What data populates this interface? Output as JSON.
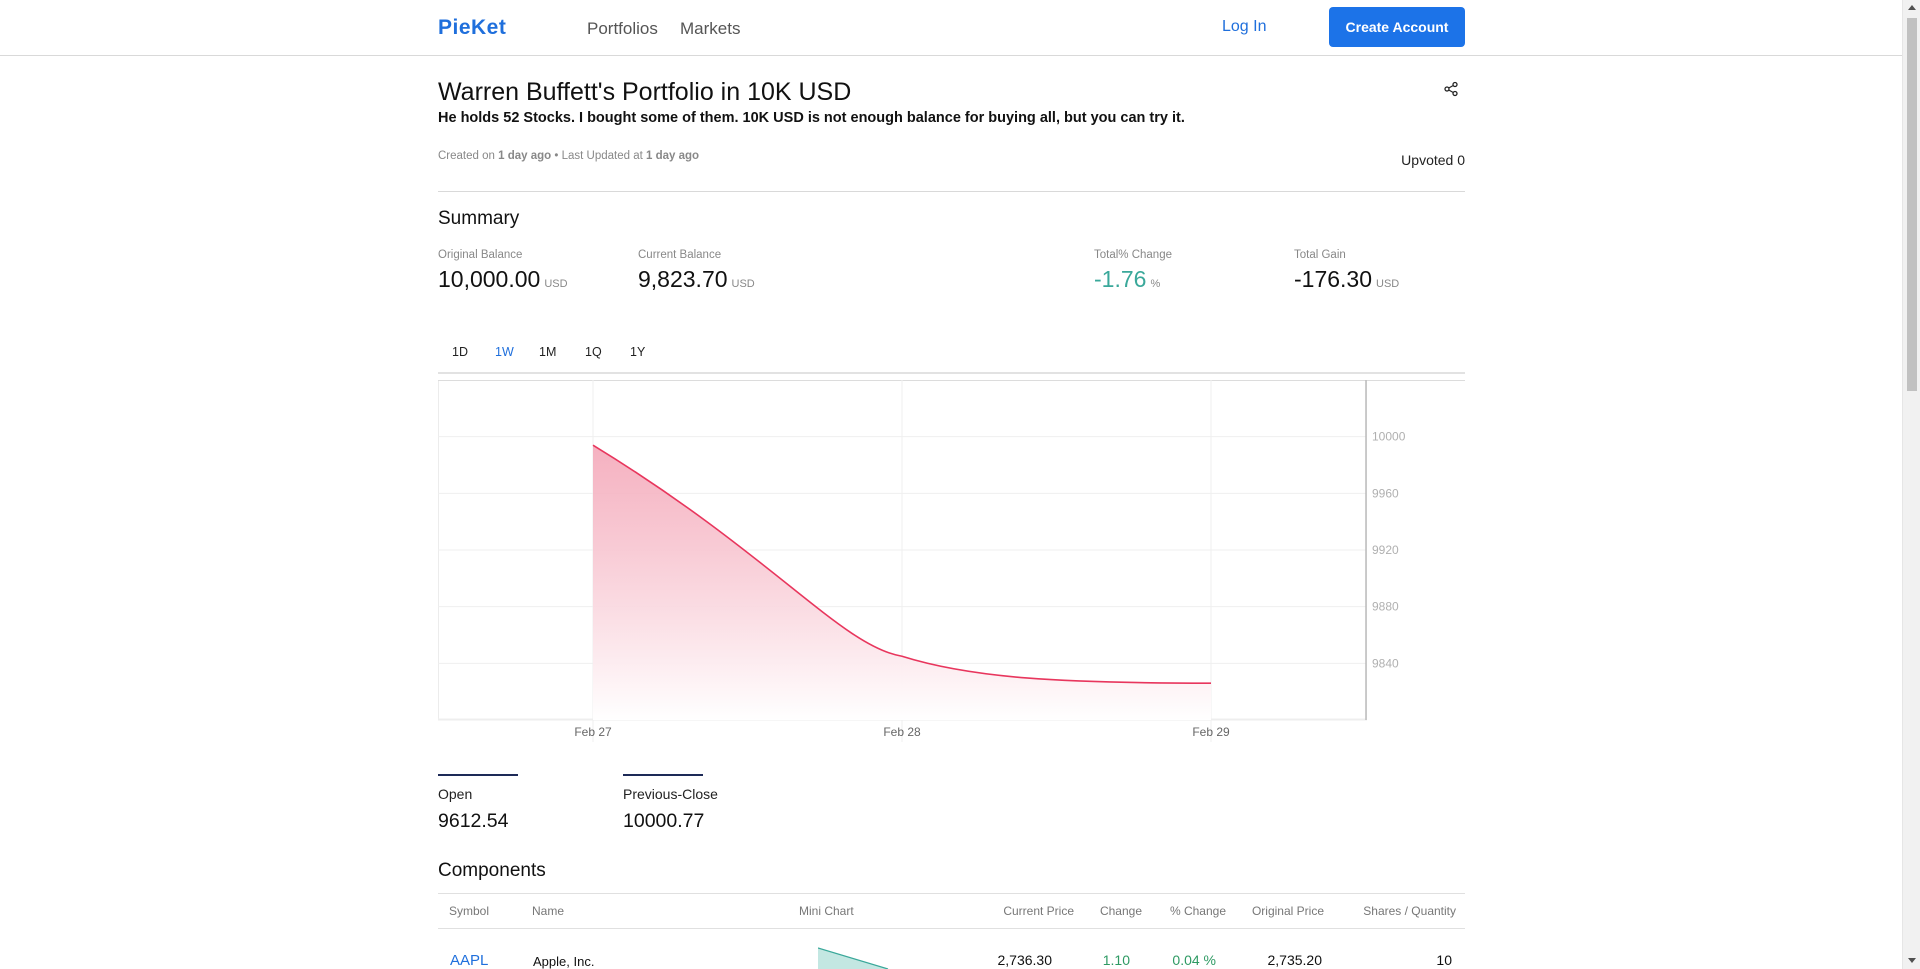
{
  "header": {
    "logo": "PieKet",
    "nav": [
      "Portfolios",
      "Markets"
    ],
    "login": "Log In",
    "create_account": "Create Account"
  },
  "portfolio": {
    "title": "Warren Buffett's Portfolio in 10K USD",
    "subtitle": "He holds 52 Stocks. I bought some of them. 10K USD is not enough balance for buying all, but you can try it.",
    "meta": {
      "created_prefix": "Created on ",
      "created": "1 day ago",
      "separator": " • Last Updated at ",
      "updated": "1 day ago"
    },
    "upvoted": "Upvoted 0"
  },
  "summary": {
    "title": "Summary",
    "stats": [
      {
        "label": "Original Balance",
        "value": "10,000.00",
        "unit": "USD"
      },
      {
        "label": "Current Balance",
        "value": "9,823.70",
        "unit": "USD"
      },
      {
        "label": "Total% Change",
        "value": "-1.76",
        "unit": "%"
      },
      {
        "label": "Total Gain",
        "value": "-176.30",
        "unit": "USD"
      }
    ]
  },
  "range_tabs": [
    "1D",
    "1W",
    "1M",
    "1Q",
    "1Y"
  ],
  "active_range": "1W",
  "chart_data": {
    "type": "area",
    "x": [
      "Feb 27",
      "Feb 28",
      "Feb 29"
    ],
    "values": [
      9994,
      9845,
      9826
    ],
    "yticks": [
      10000,
      9960,
      9920,
      9880,
      9840
    ],
    "ylim": [
      9800,
      10040
    ],
    "grid": true,
    "color": "#e8365d"
  },
  "open_close": {
    "open_label": "Open",
    "open_value": "9612.54",
    "prev_label": "Previous-Close",
    "prev_value": "10000.77"
  },
  "components": {
    "title": "Components",
    "columns": [
      "Symbol",
      "Name",
      "Mini Chart",
      "Current Price",
      "Change",
      "% Change",
      "Original Price",
      "Shares / Quantity"
    ],
    "rows": [
      {
        "symbol": "AAPL",
        "name": "Apple, Inc.",
        "current": "2,736.30",
        "change": "1.10",
        "pct": "0.04 %",
        "original": "2,735.20",
        "shares": "10"
      }
    ]
  }
}
